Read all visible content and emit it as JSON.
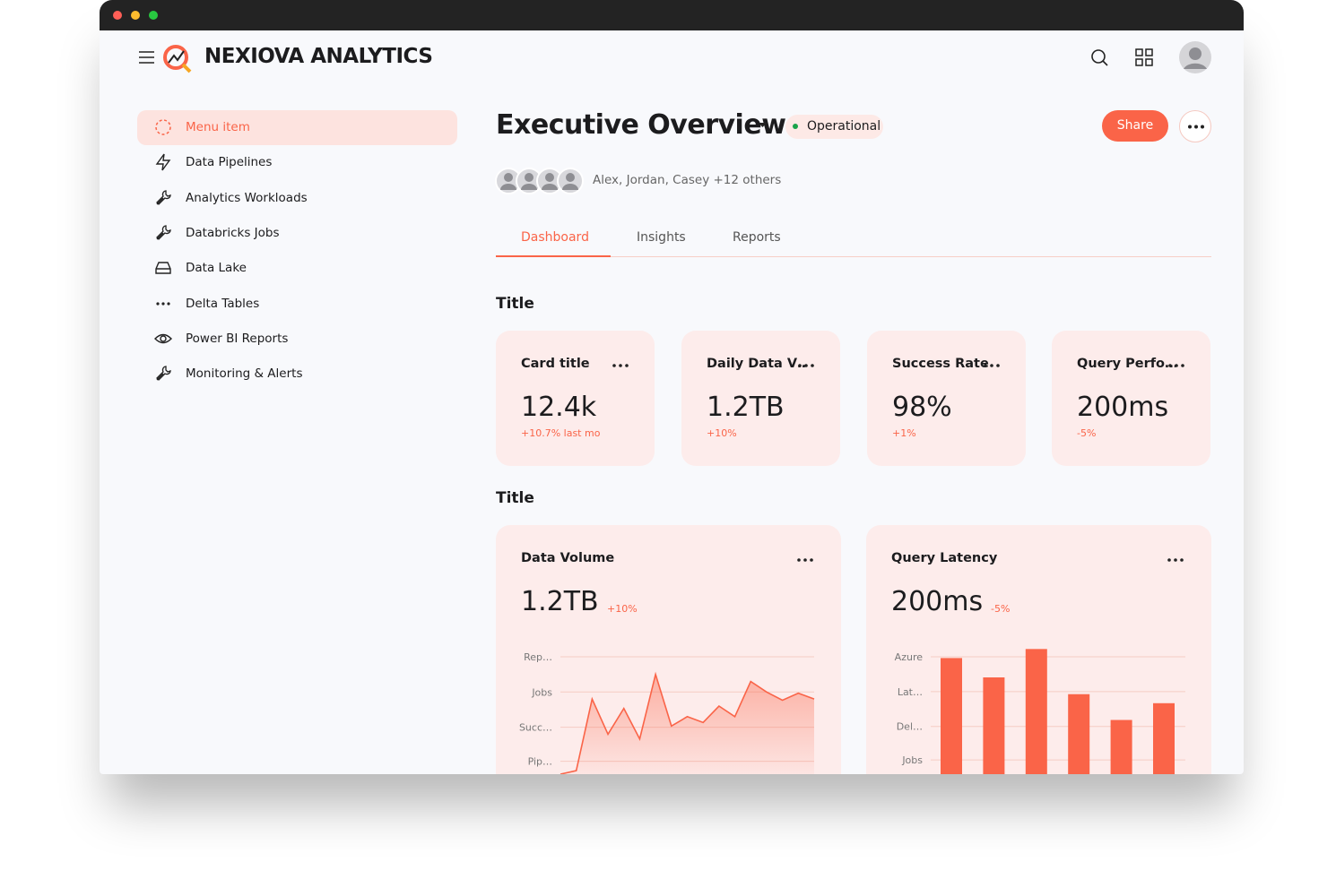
{
  "header": {
    "brand": "NEXIOVA ANALYTICS"
  },
  "sidebar": {
    "items": [
      "Menu item",
      "Data Pipelines",
      "Analytics Workloads",
      "Databricks Jobs",
      "Data Lake",
      "Delta Tables",
      "Power BI Reports",
      "Monitoring & Alerts"
    ]
  },
  "page": {
    "title": "Executive Overview",
    "status": "Operational",
    "share": "Share",
    "collaborators": "Alex, Jordan, Casey +12 others"
  },
  "tabs": [
    "Dashboard",
    "Insights",
    "Reports"
  ],
  "sections": [
    {
      "title": "Title",
      "cards": [
        {
          "title": "Card title",
          "value": "12.4k",
          "change": "+10.7% last mo"
        },
        {
          "title": "Daily Data V…",
          "value": "1.2TB",
          "change": "+10%"
        },
        {
          "title": "Success Rate",
          "value": "98%",
          "change": "+1%"
        },
        {
          "title": "Query Perfo…",
          "value": "200ms",
          "change": "-5%"
        }
      ]
    },
    {
      "title": "Title"
    }
  ],
  "chart_data": [
    {
      "type": "area",
      "title": "Data Volume",
      "kpi": "1.2TB",
      "change": "+10%",
      "color": "#fa6448",
      "values": [
        0,
        3,
        64,
        34,
        56,
        30,
        85,
        41,
        49,
        44,
        58,
        49,
        79,
        70,
        63,
        69,
        64
      ],
      "ylim": [
        0,
        100
      ],
      "yticks": [
        {
          "value": 100,
          "label": "Rep…"
        },
        {
          "value": 70,
          "label": "Jobs"
        },
        {
          "value": 40,
          "label": "Succ…"
        },
        {
          "value": 11,
          "label": "Pip…"
        }
      ]
    },
    {
      "type": "bar",
      "title": "Query Latency",
      "kpi": "200ms",
      "change": "-5%",
      "color": "#fa6448",
      "values": [
        90,
        75,
        97,
        62,
        42,
        55
      ],
      "ylim": [
        0,
        100
      ],
      "yticks": [
        {
          "value": 91,
          "label": "Azure"
        },
        {
          "value": 64,
          "label": "Lat…"
        },
        {
          "value": 37,
          "label": "Del…"
        },
        {
          "value": 11,
          "label": "Jobs"
        }
      ]
    }
  ]
}
